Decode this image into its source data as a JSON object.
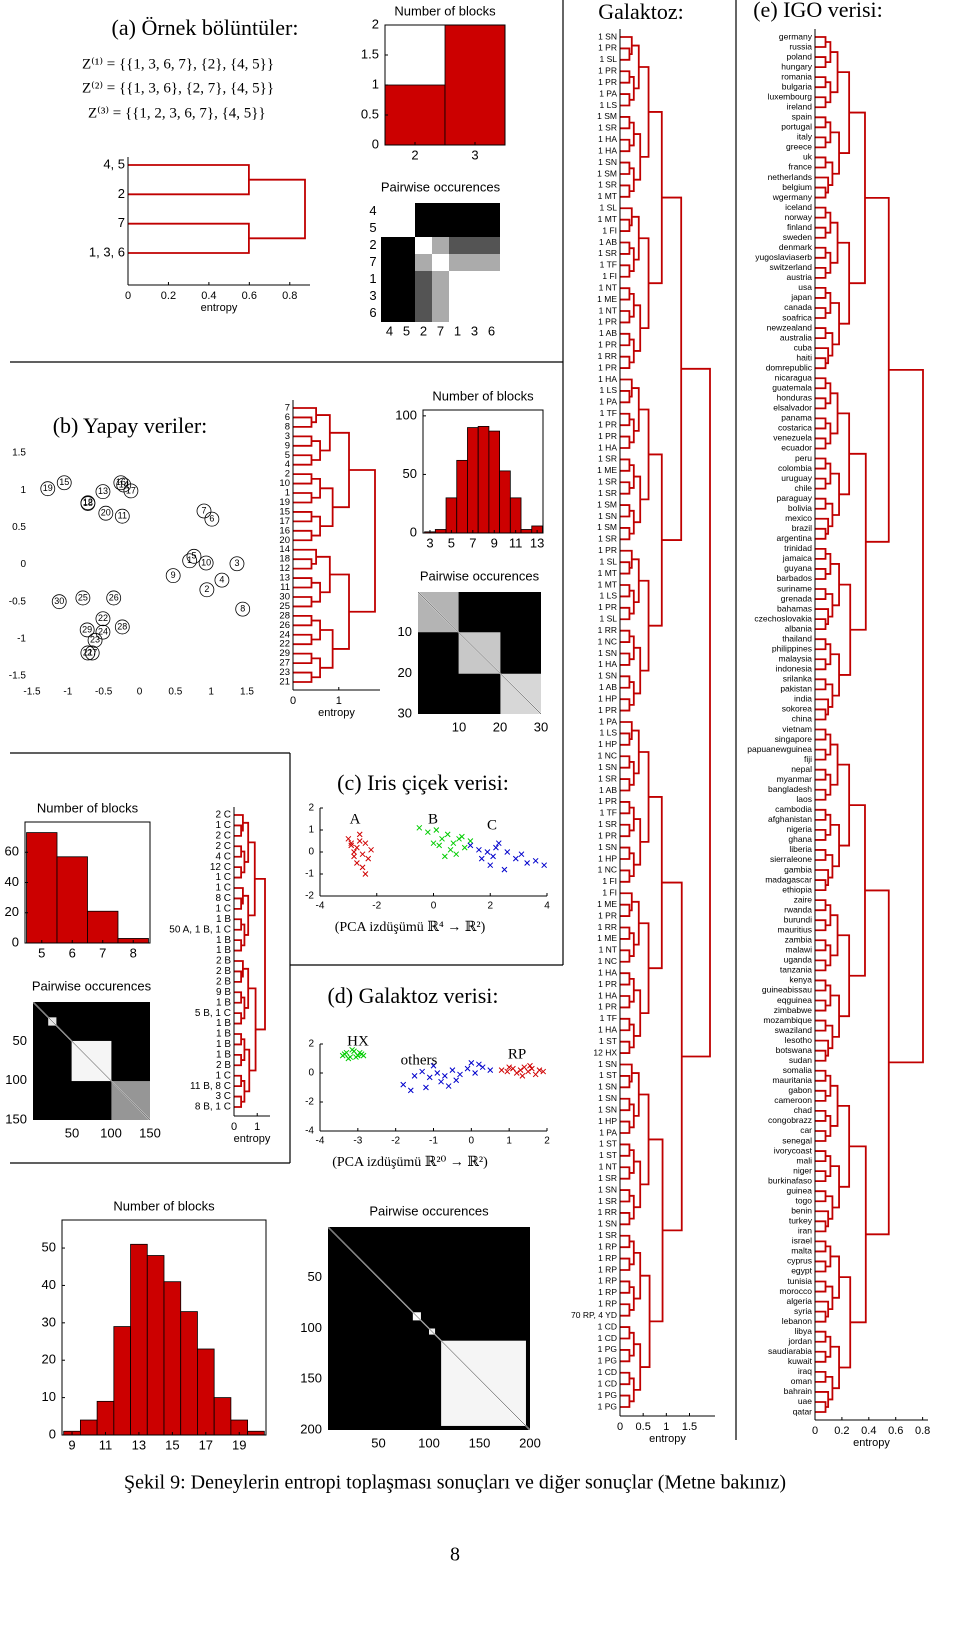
{
  "figure": {
    "panel_titles": [
      "(a) Örnek bölüntüler:",
      "(b) Yapay veriler:",
      "(c) Iris çiçek verisi:",
      "(d) Galaktoz verisi:",
      "(e) IGO verisi:"
    ],
    "formulas": [
      "Z⁽¹⁾  =  {{1, 3, 6, 7}, {2}, {4, 5}}",
      "Z⁽²⁾  =  {{1, 3, 6}, {2, 7}, {4, 5}}",
      "Z⁽³⁾  =  {{1, 2, 3, 6, 7}, {4, 5}}"
    ],
    "projections": [
      "(PCA izdüşümü ℝ⁴ → ℝ²)",
      "(PCA izdüşümü ℝ²⁰ → ℝ²)"
    ],
    "caption": "Şekil 9: Deneylerin entropi toplaşması sonuçları ve diğer sonuçlar (Metne bakınız)",
    "page_number": "8"
  },
  "chart_data": [
    {
      "type": "dendrogram",
      "leaves": [
        "4, 5",
        "2",
        "7",
        "1, 3, 6"
      ],
      "xlim": [
        0,
        0.9
      ],
      "xticks": [
        0,
        0.2,
        0.4,
        0.6,
        0.8
      ],
      "xlabel": "entropy"
    },
    {
      "type": "bar",
      "title": "Number of blocks",
      "x": [
        2,
        3
      ],
      "values": [
        1,
        2
      ],
      "color": "#cc0000",
      "xlim": [
        1.5,
        3.5
      ],
      "ylim": [
        0,
        2
      ],
      "xticks": [
        2,
        3
      ],
      "yticks": [
        0,
        0.5,
        1,
        1.5,
        2
      ]
    },
    {
      "type": "heatmap",
      "title": "Pairwise occurences",
      "labels": [
        "4",
        "5",
        "2",
        "7",
        "1",
        "3",
        "6"
      ],
      "matrix": [
        [
          1,
          1,
          0,
          0,
          0,
          0,
          0
        ],
        [
          1,
          1,
          0,
          0,
          0,
          0,
          0
        ],
        [
          0,
          0,
          1,
          0.67,
          0.33,
          0.33,
          0.33
        ],
        [
          0,
          0,
          0.67,
          1,
          0.67,
          0.67,
          0.67
        ],
        [
          0,
          0,
          0.33,
          0.67,
          1,
          1,
          1
        ],
        [
          0,
          0,
          0.33,
          0.67,
          1,
          1,
          1
        ],
        [
          0,
          0,
          0.33,
          0.67,
          1,
          1,
          1
        ]
      ]
    },
    {
      "type": "scatter",
      "labels": [
        "1",
        "2",
        "3",
        "4",
        "5",
        "6",
        "7",
        "8",
        "9",
        "10",
        "11",
        "12",
        "13",
        "14",
        "15",
        "16",
        "17",
        "18",
        "19",
        "20",
        "21",
        "22",
        "23",
        "24",
        "25",
        "26",
        "27",
        "28",
        "29",
        "30"
      ],
      "x": [
        0.7,
        0.94,
        1.36,
        1.15,
        0.76,
        1.01,
        0.9,
        1.44,
        0.47,
        0.93,
        -0.24,
        -0.72,
        -0.51,
        -0.22,
        -1.05,
        -0.26,
        -0.12,
        -0.72,
        -1.28,
        -0.47,
        -0.72,
        -0.51,
        -0.62,
        -0.51,
        -0.79,
        -0.36,
        -0.66,
        -0.24,
        -0.73,
        -1.12
      ],
      "y": [
        0.05,
        -0.34,
        0.01,
        -0.21,
        0.11,
        0.61,
        0.72,
        -0.6,
        -0.15,
        0.02,
        0.65,
        0.83,
        0.98,
        1.07,
        1.1,
        1.1,
        0.99,
        0.82,
        1.02,
        0.69,
        -1.19,
        -0.73,
        -1.02,
        -0.91,
        -0.45,
        -0.45,
        -1.19,
        -0.84,
        -0.88,
        -0.5
      ],
      "xlim": [
        -1.5,
        1.5
      ],
      "ylim": [
        -1.5,
        1.5
      ],
      "xticks": [
        -1.5,
        -1,
        -0.5,
        0,
        0.5,
        1,
        1.5
      ],
      "yticks": [
        -1.5,
        -1,
        -0.5,
        0,
        0.5,
        1,
        1.5
      ]
    },
    {
      "type": "dendrogram",
      "leaves": [
        "7",
        "6",
        "8",
        "3",
        "9",
        "5",
        "4",
        "2",
        "10",
        "1",
        "19",
        "15",
        "17",
        "16",
        "20",
        "14",
        "18",
        "12",
        "13",
        "11",
        "30",
        "25",
        "28",
        "26",
        "24",
        "22",
        "29",
        "27",
        "23",
        "21"
      ],
      "xlim": [
        0,
        1.9
      ],
      "xticks": [
        0,
        1
      ],
      "xlabel": "entropy"
    },
    {
      "type": "bar",
      "title": "Number of blocks",
      "x": [
        3,
        4,
        5,
        6,
        7,
        8,
        9,
        10,
        11,
        12,
        13
      ],
      "values": [
        1,
        3,
        30,
        62,
        90,
        91,
        87,
        53,
        30,
        3,
        6
      ],
      "color": "#cc0000",
      "xlim": [
        2.35,
        13.55
      ],
      "ylim": [
        0,
        105
      ],
      "xticks": [
        3,
        5,
        7,
        9,
        11,
        13
      ],
      "yticks": [
        0,
        50,
        100
      ]
    },
    {
      "type": "heatmap",
      "title": "Pairwise occurences",
      "xlim": [
        0,
        30
      ],
      "ylim": [
        0,
        30
      ],
      "xticks": [
        10,
        20,
        30
      ],
      "yticks": [
        10,
        20,
        30
      ]
    },
    {
      "type": "scatter",
      "series": [
        {
          "name": "A",
          "color": "#d00000",
          "x": [
            -2.9,
            -2.7,
            -2.5,
            -2.8,
            -2.6,
            -2.4,
            -2.3,
            -2.2,
            -2.7,
            -3.0,
            -2.5,
            -2.6,
            -2.8,
            -2.4,
            -2.9
          ],
          "y": [
            0.3,
            0.2,
            -0.1,
            0.0,
            0.5,
            0.4,
            -0.3,
            0.1,
            -0.5,
            0.6,
            -0.7,
            0.8,
            -0.2,
            -1.0,
            0.4
          ]
        },
        {
          "name": "B",
          "color": "#00cc00",
          "x": [
            -0.5,
            -0.2,
            0.1,
            0.3,
            0.5,
            0.7,
            0.9,
            1.1,
            0.2,
            0.6,
            1.3,
            0.8,
            0.4,
            0.0,
            1.0
          ],
          "y": [
            1.1,
            0.9,
            1.0,
            0.6,
            0.8,
            0.4,
            0.6,
            0.2,
            0.3,
            0.1,
            0.5,
            -0.1,
            -0.2,
            0.4,
            0.7
          ]
        },
        {
          "name": "C",
          "color": "#0000cc",
          "x": [
            1.3,
            1.6,
            1.9,
            2.1,
            2.3,
            2.6,
            2.9,
            3.1,
            3.3,
            3.6,
            2.0,
            2.5,
            1.7,
            3.9,
            2.2
          ],
          "y": [
            0.3,
            0.1,
            0.0,
            -0.2,
            0.4,
            0.0,
            -0.3,
            -0.1,
            -0.5,
            -0.4,
            -0.6,
            -0.8,
            -0.3,
            -0.6,
            0.2
          ]
        }
      ],
      "xlim": [
        -4,
        4
      ],
      "ylim": [
        -2,
        2
      ],
      "xticks": [
        -4,
        -2,
        0,
        2,
        4
      ],
      "yticks": [
        -2,
        -1,
        0,
        1,
        2
      ]
    },
    {
      "type": "dendrogram",
      "leaves": [
        "2 C",
        "1 C",
        "2 C",
        "2 C",
        "4 C",
        "12 C",
        "1 C",
        "1 C",
        "8 C",
        "1 C",
        "1 B",
        "50 A, 1 B, 1 C",
        "1 B",
        "1 B",
        "2 B",
        "2 B",
        "2 B",
        "9 B",
        "1 B",
        "5 B, 1 C",
        "1 B",
        "1 B",
        "1 B",
        "1 B",
        "2 B",
        "1 C",
        "11 B, 8 C",
        "3 C",
        "8 B, 1 C"
      ],
      "xlim": [
        0,
        1.55
      ],
      "xticks": [
        0,
        1
      ],
      "xlabel": "entropy"
    },
    {
      "type": "bar",
      "title": "Number of blocks",
      "x": [
        5,
        6,
        7,
        8
      ],
      "values": [
        73,
        57,
        21,
        3
      ],
      "color": "#cc0000",
      "xlim": [
        4.45,
        8.55
      ],
      "ylim": [
        0,
        80
      ],
      "xticks": [
        5,
        6,
        7,
        8
      ],
      "yticks": [
        0,
        20,
        40,
        60
      ]
    },
    {
      "type": "heatmap",
      "title": "Pairwise occurences",
      "xlim": [
        0,
        150
      ],
      "ylim": [
        0,
        150
      ],
      "xticks": [
        50,
        100,
        150
      ],
      "yticks": [
        50,
        100,
        150
      ]
    },
    {
      "type": "scatter",
      "series": [
        {
          "name": "HX",
          "color": "#00cc00",
          "x": [
            -3.4,
            -3.3,
            -3.2,
            -3.1,
            -3.0,
            -2.9,
            -3.25,
            -3.05,
            -2.95,
            -3.35,
            -3.15,
            -2.85
          ],
          "y": [
            1.2,
            1.4,
            1.1,
            1.5,
            1.2,
            1.3,
            1.0,
            1.1,
            1.4,
            1.3,
            1.6,
            1.2
          ]
        },
        {
          "name": "others",
          "color": "#0000cc",
          "x": [
            -1.8,
            -1.5,
            -1.3,
            -1.1,
            -0.9,
            -0.7,
            -0.5,
            -0.3,
            -0.1,
            0.1,
            0.3,
            0.5,
            -1.6,
            -1.2,
            -0.8,
            -0.4,
            0.0,
            -1.0,
            -0.6,
            0.2
          ],
          "y": [
            -0.8,
            -0.2,
            0.1,
            -0.3,
            0.0,
            -0.2,
            0.2,
            -0.1,
            0.3,
            0.0,
            0.4,
            0.2,
            -1.2,
            -1.0,
            -0.6,
            -0.5,
            0.7,
            0.5,
            -0.9,
            0.6
          ]
        },
        {
          "name": "RP",
          "color": "#d00000",
          "x": [
            0.8,
            0.95,
            1.1,
            1.2,
            1.3,
            1.4,
            1.5,
            1.6,
            1.7,
            1.8,
            1.9,
            1.0,
            1.35,
            1.55
          ],
          "y": [
            0.2,
            0.1,
            0.3,
            0.0,
            0.2,
            0.4,
            0.1,
            0.3,
            -0.1,
            0.2,
            0.1,
            0.4,
            -0.2,
            0.5
          ]
        }
      ],
      "xlim": [
        -4,
        2
      ],
      "ylim": [
        -4,
        2
      ],
      "xticks": [
        -4,
        -3,
        -2,
        -1,
        0,
        1,
        2
      ],
      "yticks": [
        -4,
        -2,
        0,
        2
      ]
    },
    {
      "type": "bar",
      "title": "Number of blocks",
      "x": [
        9,
        10,
        11,
        12,
        13,
        14,
        15,
        16,
        17,
        18,
        19,
        20
      ],
      "values": [
        1,
        4,
        9,
        29,
        51,
        48,
        41,
        33,
        23,
        10,
        4,
        1
      ],
      "color": "#cc0000",
      "xlim": [
        8.4,
        20.6
      ],
      "ylim": [
        0,
        57.5
      ],
      "xticks": [
        9,
        11,
        13,
        15,
        17,
        19
      ],
      "yticks": [
        0,
        10,
        20,
        30,
        40,
        50
      ]
    },
    {
      "type": "heatmap",
      "title": "Pairwise occurences",
      "xlim": [
        0,
        200
      ],
      "ylim": [
        0,
        200
      ],
      "xticks": [
        50,
        100,
        150,
        200
      ],
      "yticks": [
        50,
        100,
        150,
        200
      ]
    },
    {
      "type": "dendrogram",
      "title": "Galaktoz:",
      "leaves": [
        "1 SN",
        "1 PR",
        "1 SL",
        "1 PR",
        "1 PR",
        "1 PA",
        "1 LS",
        "1 SM",
        "1 SR",
        "1 HA",
        "1 HA",
        "1 SN",
        "1 SM",
        "1 SR",
        "1 MT",
        "1 SL",
        "1 MT",
        "1 FI",
        "1 AB",
        "1 SR",
        "1 TF",
        "1 FI",
        "1 NT",
        "1 ME",
        "1 NT",
        "1 PR",
        "1 AB",
        "1 PR",
        "1 RR",
        "1 PR",
        "1 HA",
        "1 LS",
        "1 PA",
        "1 TF",
        "1 PR",
        "1 PR",
        "1 HA",
        "1 SR",
        "1 ME",
        "1 SR",
        "1 SR",
        "1 SM",
        "1 SN",
        "1 SM",
        "1 SR",
        "1 PR",
        "1 SL",
        "1 MT",
        "1 MT",
        "1 LS",
        "1 PR",
        "1 SL",
        "1 RR",
        "1 NC",
        "1 SN",
        "1 HA",
        "1 SN",
        "1 AB",
        "1 HP",
        "1 PR",
        "1 PA",
        "1 LS",
        "1 HP",
        "1 NC",
        "1 SN",
        "1 SR",
        "1 AB",
        "1 PR",
        "1 TF",
        "1 SR",
        "1 PR",
        "1 SN",
        "1 HP",
        "1 NC",
        "1 FI",
        "1 FI",
        "1 ME",
        "1 PR",
        "1 RR",
        "1 ME",
        "1 NT",
        "1 NC",
        "1 HA",
        "1 PR",
        "1 HA",
        "1 PR",
        "1 TF",
        "1 HA",
        "1 ST",
        "12 HX",
        "1 SN",
        "1 ST",
        "1 SN",
        "1 SN",
        "1 SN",
        "1 HP",
        "1 PA",
        "1 ST",
        "1 ST",
        "1 NT",
        "1 SR",
        "1 SN",
        "1 SR",
        "1 RR",
        "1 SN",
        "1 SR",
        "1 RP",
        "1 RP",
        "1 RP",
        "1 RP",
        "1 RP",
        "1 RP",
        "70 RP, 4 YD",
        "1 CD",
        "1 CD",
        "1 PG",
        "1 PG",
        "1 CD",
        "1 CD",
        "1 PG",
        "1 PG"
      ],
      "xlim": [
        0,
        2.05
      ],
      "xticks": [
        0,
        0.5,
        1,
        1.5
      ],
      "xlabel": "entropy"
    },
    {
      "type": "dendrogram",
      "leaves": [
        "germany",
        "russia",
        "poland",
        "hungary",
        "romania",
        "bulgaria",
        "luxembourg",
        "ireland",
        "spain",
        "portugal",
        "italy",
        "greece",
        "uk",
        "france",
        "netherlands",
        "belgium",
        "wgermany",
        "iceland",
        "norway",
        "finland",
        "sweden",
        "denmark",
        "yugoslaviaserb",
        "switzerland",
        "austria",
        "usa",
        "japan",
        "canada",
        "soafrica",
        "newzealand",
        "australia",
        "cuba",
        "haiti",
        "domrepublic",
        "nicaragua",
        "guatemala",
        "honduras",
        "elsalvador",
        "panama",
        "costarica",
        "venezuela",
        "ecuador",
        "peru",
        "colombia",
        "uruguay",
        "chile",
        "paraguay",
        "bolivia",
        "mexico",
        "brazil",
        "argentina",
        "trinidad",
        "jamaica",
        "guyana",
        "barbados",
        "suriname",
        "grenada",
        "bahamas",
        "czechoslovakia",
        "albania",
        "thailand",
        "philippines",
        "malaysia",
        "indonesia",
        "srilanka",
        "pakistan",
        "india",
        "sokorea",
        "china",
        "vietnam",
        "singapore",
        "papuanewguinea",
        "fiji",
        "nepal",
        "myanmar",
        "bangladesh",
        "laos",
        "cambodia",
        "afghanistan",
        "nigeria",
        "ghana",
        "liberia",
        "sierraleone",
        "gambia",
        "madagascar",
        "ethiopia",
        "zaire",
        "rwanda",
        "burundi",
        "mauritius",
        "zambia",
        "malawi",
        "uganda",
        "tanzania",
        "kenya",
        "guineabissau",
        "eqguinea",
        "zimbabwe",
        "mozambique",
        "swaziland",
        "lesotho",
        "botswana",
        "sudan",
        "somalia",
        "mauritania",
        "gabon",
        "cameroon",
        "chad",
        "congobrazz",
        "car",
        "senegal",
        "ivorycoast",
        "mali",
        "niger",
        "burkinafaso",
        "guinea",
        "togo",
        "benin",
        "turkey",
        "iran",
        "israel",
        "malta",
        "cyprus",
        "egypt",
        "tunisia",
        "morocco",
        "algeria",
        "syria",
        "lebanon",
        "libya",
        "jordan",
        "saudiarabia",
        "kuwait",
        "iraq",
        "oman",
        "bahrain",
        "uae",
        "qatar"
      ],
      "xlim": [
        0,
        0.84
      ],
      "xticks": [
        0,
        0.2,
        0.4,
        0.6,
        0.8
      ],
      "xlabel": "entropy"
    }
  ]
}
